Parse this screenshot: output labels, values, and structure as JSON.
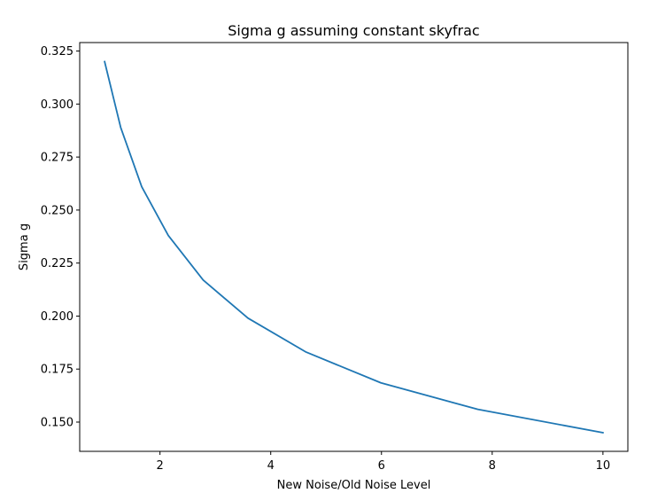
{
  "chart_data": {
    "type": "line",
    "title": "Sigma g assuming constant skyfrac",
    "xlabel": "New Noise/Old Noise Level",
    "ylabel": "Sigma g",
    "xlim": [
      0.55,
      10.45
    ],
    "ylim": [
      0.1362,
      0.329
    ],
    "xticks": [
      2,
      4,
      6,
      8,
      10
    ],
    "xtick_labels": [
      "2",
      "4",
      "6",
      "8",
      "10"
    ],
    "yticks": [
      0.15,
      0.175,
      0.2,
      0.225,
      0.25,
      0.275,
      0.3,
      0.325
    ],
    "ytick_labels": [
      "0.150",
      "0.175",
      "0.200",
      "0.225",
      "0.250",
      "0.275",
      "0.300",
      "0.325"
    ],
    "grid": false,
    "legend": "none",
    "series": [
      {
        "color": "#1f77b4",
        "x": [
          1.0,
          1.29,
          1.67,
          2.15,
          2.78,
          3.59,
          4.64,
          5.99,
          7.74,
          10.0
        ],
        "y": [
          0.32,
          0.289,
          0.261,
          0.238,
          0.217,
          0.199,
          0.183,
          0.1685,
          0.156,
          0.145
        ]
      }
    ]
  }
}
